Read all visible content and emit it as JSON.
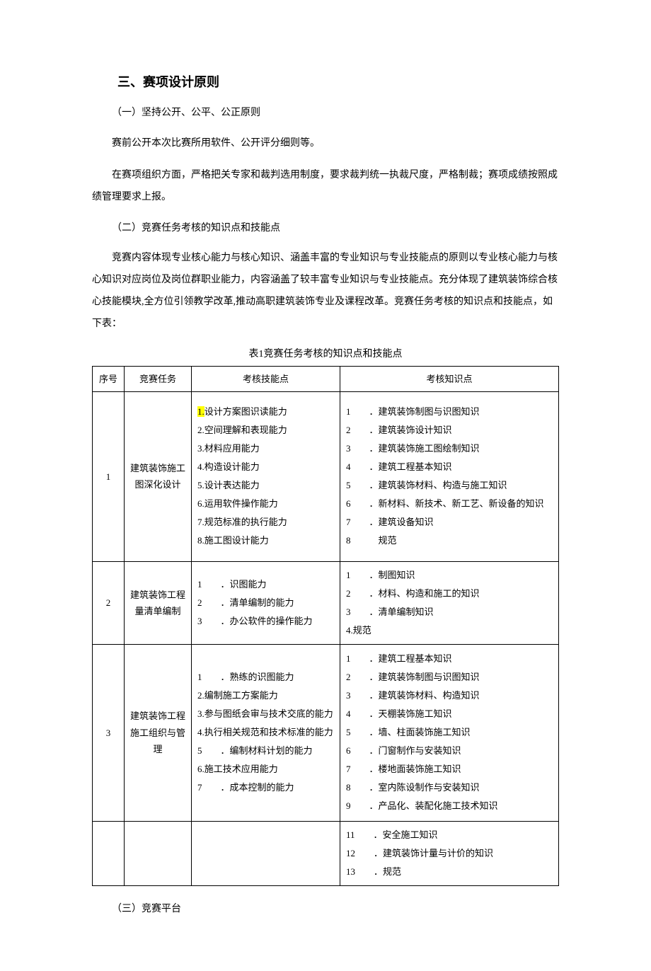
{
  "section": {
    "title": "三、赛项设计原则",
    "sub1": "（一）坚持公开、公平、公正原则",
    "para1": "赛前公开本次比赛所用软件、公开评分细则等。",
    "para2": "在赛项组织方面，严格把关专家和裁判选用制度，要求裁判统一执裁尺度，严格制裁；赛项成绩按照成绩管理要求上报。",
    "sub2": "（二）竞赛任务考核的知识点和技能点",
    "para3": "竞赛内容体现专业核心能力与核心知识、涵盖丰富的专业知识与专业技能点的原则以专业核心能力与核心知识对应岗位及岗位群职业能力，内容涵盖了较丰富专业知识与专业技能点。充分体现了建筑装饰综合核心技能模块,全方位引领教学改革,推动高职建筑装饰专业及课程改革。竞赛任务考核的知识点和技能点，如下表：",
    "table_caption": "表1竞赛任务考核的知识点和技能点",
    "sub3": "（三）竞赛平台"
  },
  "table": {
    "headers": {
      "seq": "序号",
      "task": "竞赛任务",
      "skill": "考核技能点",
      "knowledge": "考核知识点"
    },
    "rows": [
      {
        "seq": "1",
        "task": "建筑装饰施工图深化设计",
        "skill_html": "<span class=\"highlight\">1.</span>设计方案图识读能力<br>2.空间理解和表现能力<br>3.材料应用能力<br>4.构造设计能力<br>5.设计表达能力<br>6.运用软件操作能力<br>7.规范标准的执行能力<br>8.施工图设计能力",
        "knowledge_html": "1　　．建筑装饰制图与识图知识<br>2　　．建筑装饰设计知识<br>3　　．建筑装饰施工图绘制知识<br>4　　．建筑工程基本知识<br>5　　．建筑装饰材料、构造与施工知识<br>6　　．新材料、新技术、新工艺、新设备的知识<br>7　　．建筑设备知识<br>8　　　规范"
      },
      {
        "seq": "2",
        "task": "建筑装饰工程量清单编制",
        "skill_html": "1　　．识图能力<br>2　　．清单编制的能力<br>3　　．办公软件的操作能力",
        "knowledge_html": "1　　．制图知识<br>2　　．材料、构造和施工的知识<br>3　　．清单编制知识<br>4.规范"
      },
      {
        "seq": "3",
        "task": "建筑装饰工程施工组织与管理",
        "skill_html": "1　　．熟练的识图能力<br>2.编制施工方案能力<br>3.参与图纸会审与技术交底的能力<br>4.执行相关规范和技术标准的能力<br>5　　．编制材料计划的能力<br>6.施工技术应用能力<br>7　　．成本控制的能力",
        "knowledge_html": "1　　．建筑工程基本知识<br>2　　．建筑装饰制图与识图知识<br>3　　．建筑装饰材料、构造知识<br>4　　．天棚装饰施工知识<br>5　　．墙、柱面装饰施工知识<br>6　　．门窗制作与安装知识<br>7　　．楼地面装饰施工知识<br>8　　．室内陈设制作与安装知识<br>9　　．产品化、装配化施工技术知识"
      },
      {
        "seq": "",
        "task": "",
        "skill_html": "",
        "knowledge_html": "11　　．安全施工知识<br>12　　．建筑装饰计量与计价的知识<br>13　　．规范"
      }
    ]
  }
}
